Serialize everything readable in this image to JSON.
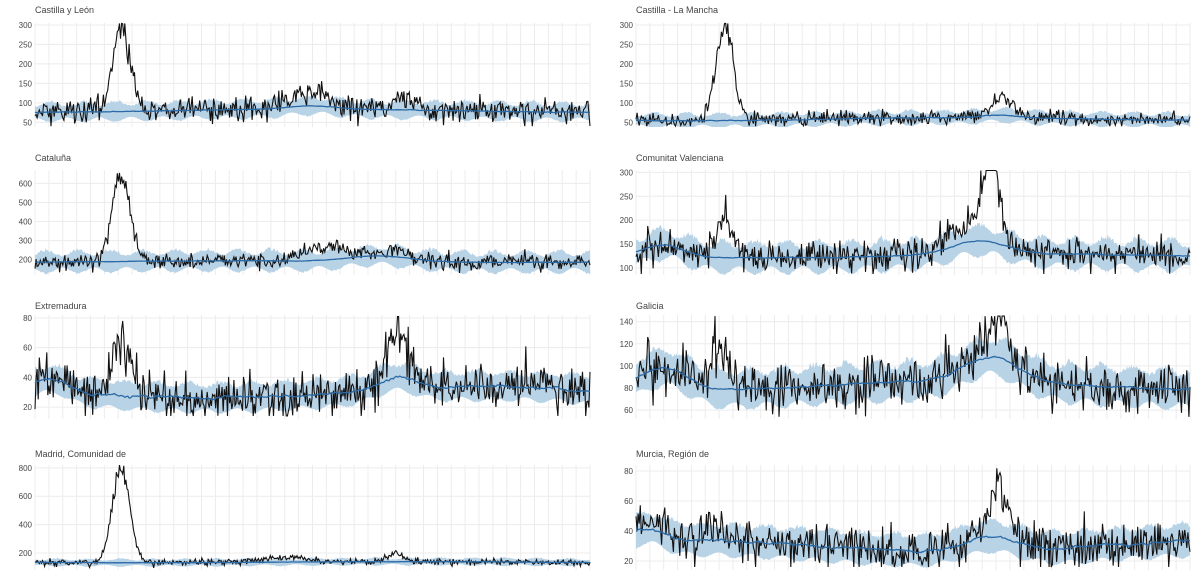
{
  "chart_data": [
    {
      "type": "line",
      "title": "Castilla y León",
      "yticks": [
        50,
        100,
        150,
        200,
        250,
        300
      ],
      "ylim": [
        38,
        305
      ],
      "grid": true,
      "baseline": 80,
      "band_half_width": [
        14,
        28
      ],
      "noise": 16,
      "bumps": [
        {
          "center": 0.155,
          "width": 0.022,
          "height": 215
        },
        {
          "center": 0.5,
          "width": 0.05,
          "height": 35
        },
        {
          "center": 0.67,
          "width": 0.025,
          "height": 30
        }
      ],
      "expected_bumps": [
        {
          "center": 0.5,
          "width": 0.06,
          "height": 8
        }
      ],
      "seed": 11
    },
    {
      "type": "line",
      "title": "Castilla - La Mancha",
      "yticks": [
        50,
        100,
        150,
        200,
        250,
        300
      ],
      "ylim": [
        38,
        305
      ],
      "grid": true,
      "baseline": 58,
      "band_half_width": [
        10,
        22
      ],
      "noise": 9,
      "bumps": [
        {
          "center": 0.16,
          "width": 0.022,
          "height": 240
        },
        {
          "center": 0.66,
          "width": 0.025,
          "height": 45
        }
      ],
      "expected_bumps": [
        {
          "center": 0.66,
          "width": 0.05,
          "height": 6
        }
      ],
      "seed": 23
    },
    {
      "type": "line",
      "title": "Cataluña",
      "yticks": [
        200,
        300,
        400,
        500,
        600
      ],
      "ylim": [
        120,
        670
      ],
      "grid": true,
      "baseline": 190,
      "band_half_width": [
        30,
        65
      ],
      "noise": 22,
      "bumps": [
        {
          "center": 0.155,
          "width": 0.023,
          "height": 450
        },
        {
          "center": 0.52,
          "width": 0.06,
          "height": 70
        },
        {
          "center": 0.65,
          "width": 0.02,
          "height": 40
        }
      ],
      "expected_bumps": [
        {
          "center": 0.62,
          "width": 0.08,
          "height": 30
        }
      ],
      "seed": 37
    },
    {
      "type": "line",
      "title": "Comunitat Valenciana",
      "yticks": [
        100,
        150,
        200,
        250,
        300
      ],
      "ylim": [
        85,
        305
      ],
      "grid": true,
      "baseline": 125,
      "band_half_width": [
        18,
        38
      ],
      "noise": 18,
      "bumps": [
        {
          "center": 0.16,
          "width": 0.02,
          "height": 85
        },
        {
          "center": 0.64,
          "width": 0.02,
          "height": 160
        },
        {
          "center": 0.6,
          "width": 0.06,
          "height": 35
        }
      ],
      "expected_bumps": [
        {
          "center": 0.62,
          "width": 0.07,
          "height": 28
        },
        {
          "center": 0.05,
          "width": 0.05,
          "height": 25
        }
      ],
      "seed": 41
    },
    {
      "type": "line",
      "title": "Extremadura",
      "yticks": [
        20,
        40,
        60,
        80
      ],
      "ylim": [
        12,
        82
      ],
      "grid": true,
      "baseline": 30,
      "band_half_width": [
        7,
        11
      ],
      "noise": 8,
      "bumps": [
        {
          "center": 0.155,
          "width": 0.02,
          "height": 38
        },
        {
          "center": 0.655,
          "width": 0.022,
          "height": 35
        }
      ],
      "expected_bumps": [
        {
          "center": 0.65,
          "width": 0.05,
          "height": 8
        },
        {
          "center": 0.03,
          "width": 0.04,
          "height": 8
        }
      ],
      "seed": 53
    },
    {
      "type": "line",
      "title": "Galicia",
      "yticks": [
        60,
        80,
        100,
        120,
        140
      ],
      "ylim": [
        52,
        146
      ],
      "grid": true,
      "baseline": 82,
      "band_half_width": [
        12,
        20
      ],
      "noise": 12,
      "bumps": [
        {
          "center": 0.15,
          "width": 0.02,
          "height": 35
        },
        {
          "center": 0.65,
          "width": 0.03,
          "height": 40
        }
      ],
      "expected_bumps": [
        {
          "center": 0.64,
          "width": 0.07,
          "height": 22
        },
        {
          "center": 0.05,
          "width": 0.06,
          "height": 20
        }
      ],
      "seed": 67
    },
    {
      "type": "line",
      "title": "Madrid, Comunidad de",
      "yticks": [
        200,
        400,
        600,
        800
      ],
      "ylim": [
        80,
        820
      ],
      "grid": true,
      "baseline": 135,
      "band_half_width": [
        15,
        30
      ],
      "noise": 12,
      "bumps": [
        {
          "center": 0.155,
          "width": 0.022,
          "height": 660
        },
        {
          "center": 0.45,
          "width": 0.06,
          "height": 35
        },
        {
          "center": 0.65,
          "width": 0.02,
          "height": 60
        }
      ],
      "expected_bumps": [],
      "seed": 79
    },
    {
      "type": "line",
      "title": "Murcia, Región de",
      "yticks": [
        20,
        40,
        60,
        80
      ],
      "ylim": [
        14,
        84
      ],
      "grid": true,
      "baseline": 30,
      "band_half_width": [
        8,
        12
      ],
      "noise": 7,
      "bumps": [
        {
          "center": 0.14,
          "width": 0.02,
          "height": 12
        },
        {
          "center": 0.655,
          "width": 0.02,
          "height": 38
        }
      ],
      "expected_bumps": [
        {
          "center": 0.64,
          "width": 0.07,
          "height": 10
        },
        {
          "center": 0.02,
          "width": 0.04,
          "height": 8
        }
      ],
      "seed": 89
    }
  ],
  "colors": {
    "observed": "#111111",
    "expected": "#2b6aa6",
    "band": "#b8d2e6",
    "grid": "#ececec"
  }
}
